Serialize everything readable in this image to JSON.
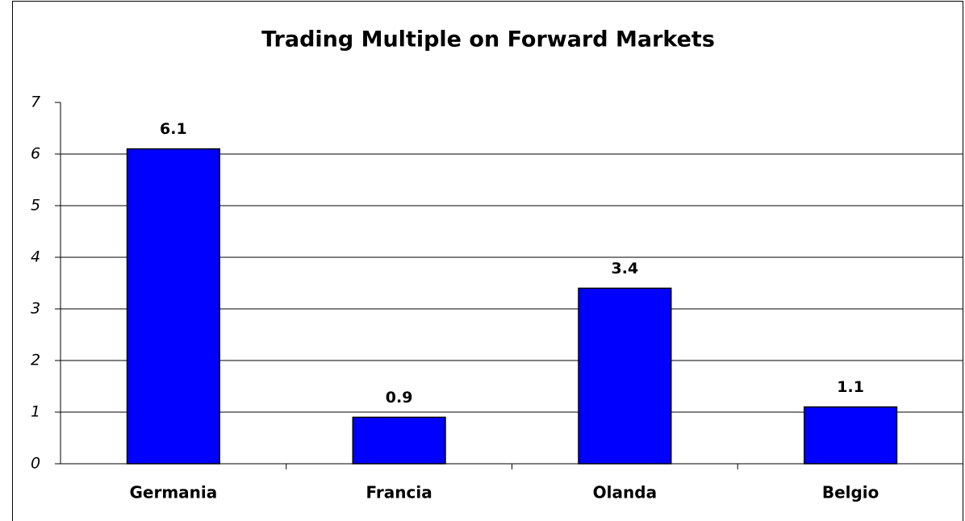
{
  "chart_data": {
    "type": "bar",
    "title": "Trading Multiple on Forward Markets",
    "categories": [
      "Germania",
      "Francia",
      "Olanda",
      "Belgio"
    ],
    "values": [
      6.1,
      0.9,
      3.4,
      1.1
    ],
    "color": "#0000ff",
    "ylim": [
      0,
      7
    ],
    "yticks": [
      0,
      1,
      2,
      3,
      4,
      5,
      6,
      7
    ],
    "grid": true
  }
}
